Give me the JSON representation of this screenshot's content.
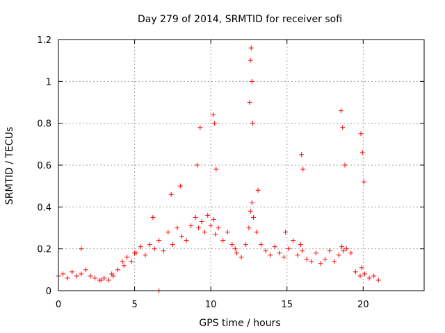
{
  "chart_data": {
    "type": "scatter",
    "title": "Day 279 of 2014, SRMTID for receiver sofi",
    "xlabel": "GPS time / hours",
    "ylabel": "SRMTID / TECUs",
    "xlim": [
      0,
      24
    ],
    "ylim": [
      0,
      1.2
    ],
    "x_ticks": [
      0,
      5,
      10,
      15,
      20
    ],
    "y_ticks": [
      0,
      0.2,
      0.4,
      0.6,
      0.8,
      1,
      1.2
    ],
    "x_tick_labels": [
      "0",
      "5",
      "10",
      "15",
      "20"
    ],
    "y_tick_labels": [
      "0",
      "0.2",
      "0.4",
      "0.6",
      "0.8",
      "1",
      "1.2"
    ],
    "grid": true,
    "marker": "+",
    "color": "#ff0000",
    "series": [
      {
        "name": "sofi",
        "x": [
          0.0,
          0.3,
          0.6,
          0.9,
          1.2,
          1.5,
          1.8,
          2.1,
          2.4,
          2.7,
          3.0,
          3.3,
          3.6,
          3.9,
          4.2,
          4.5,
          4.8,
          5.1,
          5.4,
          5.7,
          6.0,
          6.3,
          6.6,
          6.9,
          7.2,
          7.5,
          7.8,
          8.1,
          8.4,
          8.7,
          9.0,
          9.2,
          9.4,
          9.6,
          9.8,
          10.0,
          10.2,
          10.3,
          10.5,
          10.8,
          11.1,
          11.4,
          11.7,
          12.0,
          12.3,
          12.5,
          12.6,
          12.7,
          12.8,
          13.0,
          13.3,
          13.6,
          13.9,
          14.2,
          14.5,
          14.8,
          15.1,
          15.4,
          15.7,
          15.9,
          16.0,
          16.3,
          16.6,
          16.9,
          17.2,
          17.5,
          17.8,
          18.1,
          18.4,
          18.6,
          18.7,
          18.9,
          19.2,
          19.5,
          19.8,
          19.9,
          20.1,
          20.4,
          20.7,
          21.0,
          1.5,
          2.8,
          4.3,
          5.0,
          6.2,
          7.4,
          8.0,
          9.1,
          9.3,
          10.15,
          10.25,
          10.35,
          12.55,
          12.6,
          12.65,
          12.7,
          12.75,
          13.1,
          15.95,
          16.05,
          18.55,
          18.65,
          18.8,
          19.85,
          19.95,
          20.05,
          6.6,
          3.5,
          11.6,
          14.9
        ],
        "y": [
          0.07,
          0.08,
          0.06,
          0.09,
          0.07,
          0.08,
          0.1,
          0.07,
          0.06,
          0.05,
          0.06,
          0.05,
          0.07,
          0.1,
          0.14,
          0.16,
          0.14,
          0.18,
          0.21,
          0.17,
          0.22,
          0.2,
          0.24,
          0.19,
          0.28,
          0.22,
          0.3,
          0.26,
          0.24,
          0.31,
          0.35,
          0.3,
          0.33,
          0.28,
          0.36,
          0.31,
          0.34,
          0.27,
          0.3,
          0.24,
          0.28,
          0.22,
          0.18,
          0.16,
          0.22,
          0.3,
          0.38,
          0.42,
          0.35,
          0.28,
          0.22,
          0.19,
          0.17,
          0.21,
          0.18,
          0.16,
          0.2,
          0.24,
          0.17,
          0.22,
          0.19,
          0.15,
          0.14,
          0.18,
          0.13,
          0.15,
          0.19,
          0.14,
          0.17,
          0.21,
          0.19,
          0.2,
          0.18,
          0.09,
          0.07,
          0.11,
          0.08,
          0.06,
          0.07,
          0.05,
          0.2,
          0.05,
          0.12,
          0.18,
          0.35,
          0.46,
          0.5,
          0.6,
          0.78,
          0.84,
          0.8,
          0.58,
          0.9,
          1.1,
          1.16,
          1.0,
          0.8,
          0.48,
          0.65,
          0.58,
          0.86,
          0.78,
          0.6,
          0.75,
          0.66,
          0.52,
          0.0,
          0.08,
          0.2,
          0.28
        ]
      }
    ]
  }
}
